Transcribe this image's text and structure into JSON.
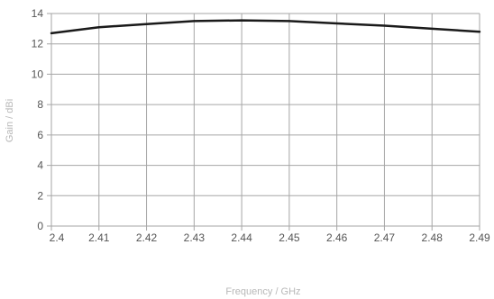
{
  "chart_data": {
    "type": "line",
    "xlabel": "Frequency / GHz",
    "ylabel": "Gain / dBi",
    "xlim": [
      2.4,
      2.49
    ],
    "ylim": [
      0,
      14
    ],
    "x_ticks": [
      "2.4",
      "2.41",
      "2.42",
      "2.43",
      "2.44",
      "2.45",
      "2.46",
      "2.47",
      "2.48",
      "2.49"
    ],
    "y_ticks": [
      "0",
      "2",
      "4",
      "6",
      "8",
      "10",
      "12",
      "14"
    ],
    "grid": true,
    "series": [
      {
        "color": "#1a1a1a",
        "x": [
          2.4,
          2.41,
          2.42,
          2.43,
          2.44,
          2.45,
          2.46,
          2.47,
          2.48,
          2.49
        ],
        "y": [
          12.7,
          13.1,
          13.3,
          13.5,
          13.55,
          13.5,
          13.35,
          13.2,
          13.0,
          12.8
        ]
      }
    ]
  }
}
